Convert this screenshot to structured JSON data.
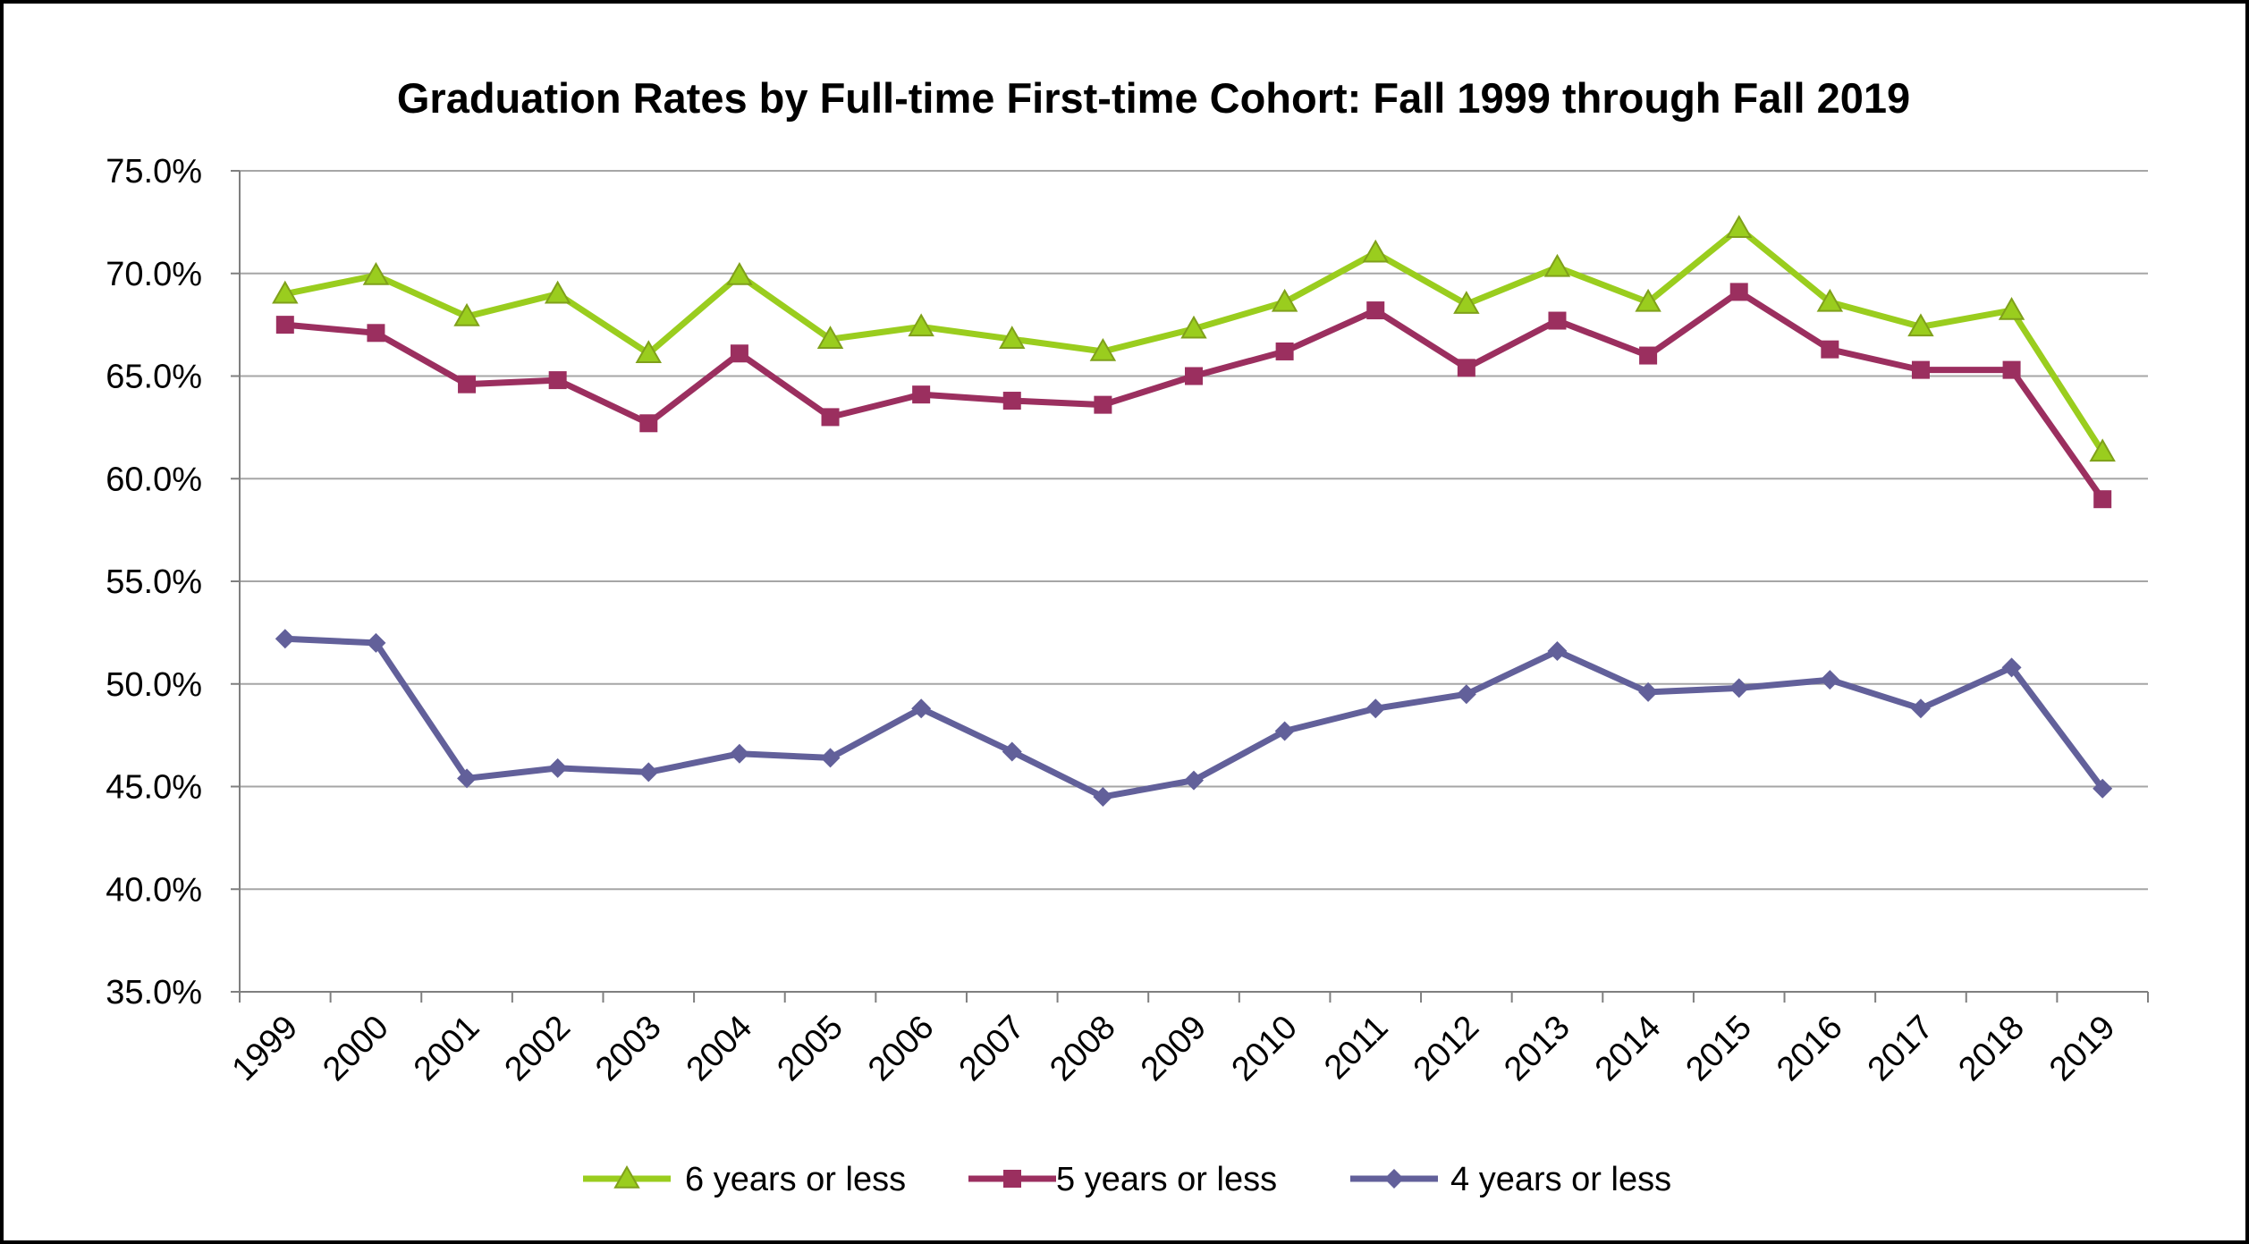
{
  "chart_data": {
    "type": "line",
    "title": "Graduation Rates by Full-time First-time Cohort: Fall 1999 through Fall 2019",
    "xlabel": "",
    "ylabel": "",
    "categories": [
      "1999",
      "2000",
      "2001",
      "2002",
      "2003",
      "2004",
      "2005",
      "2006",
      "2007",
      "2008",
      "2009",
      "2010",
      "2011",
      "2012",
      "2013",
      "2014",
      "2015",
      "2016",
      "2017",
      "2018",
      "2019"
    ],
    "ylim": [
      35,
      75
    ],
    "y_ticks": [
      35,
      40,
      45,
      50,
      55,
      60,
      65,
      70,
      75
    ],
    "y_tick_labels": [
      "35.0%",
      "40.0%",
      "45.0%",
      "50.0%",
      "55.0%",
      "60.0%",
      "65.0%",
      "70.0%",
      "75.0%"
    ],
    "grid": "horizontal",
    "legend_position": "bottom",
    "series": [
      {
        "name": "6 years or less",
        "color": "#9ACD1E",
        "marker": "triangle",
        "values": [
          69.0,
          69.9,
          67.9,
          69.0,
          66.1,
          69.9,
          66.8,
          67.4,
          66.8,
          66.2,
          67.3,
          68.6,
          71.0,
          68.5,
          70.3,
          68.6,
          72.2,
          68.6,
          67.4,
          68.2,
          61.3
        ]
      },
      {
        "name": "5 years or less",
        "color": "#9B2F5F",
        "marker": "square",
        "values": [
          67.5,
          67.1,
          64.6,
          64.8,
          62.7,
          66.1,
          63.0,
          64.1,
          63.8,
          63.6,
          65.0,
          66.2,
          68.2,
          65.4,
          67.7,
          66.0,
          69.1,
          66.3,
          65.3,
          65.3,
          59.0
        ]
      },
      {
        "name": "4 years or less",
        "color": "#62609A",
        "marker": "diamond",
        "values": [
          52.2,
          52.0,
          45.4,
          45.9,
          45.7,
          46.6,
          46.4,
          48.8,
          46.7,
          44.5,
          45.3,
          47.7,
          48.8,
          49.5,
          51.6,
          49.6,
          49.8,
          50.2,
          48.8,
          50.8,
          44.9
        ]
      }
    ]
  }
}
